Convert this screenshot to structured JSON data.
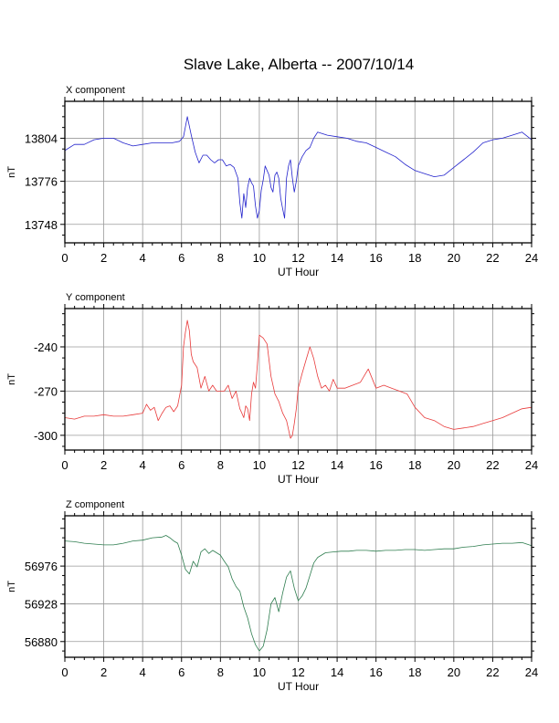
{
  "figure": {
    "title": "Slave Lake, Alberta -- 2007/10/14"
  },
  "chart_data": [
    {
      "type": "line",
      "panel_label": "X component",
      "xlabel": "UT Hour",
      "ylabel": "nT",
      "xlim": [
        0,
        24
      ],
      "ylim": [
        13736,
        13828
      ],
      "x_ticks": [
        0,
        2,
        4,
        6,
        8,
        10,
        12,
        14,
        16,
        18,
        20,
        22,
        24
      ],
      "y_ticks": [
        13748,
        13776,
        13804
      ],
      "grid": true,
      "color": "#2222cc",
      "x": [
        0,
        0.5,
        1,
        1.5,
        2,
        2.5,
        3,
        3.5,
        4,
        4.5,
        5,
        5.5,
        5.9,
        6.1,
        6.3,
        6.5,
        6.7,
        6.9,
        7.1,
        7.3,
        7.5,
        7.7,
        7.9,
        8.1,
        8.3,
        8.5,
        8.7,
        8.9,
        9.0,
        9.1,
        9.2,
        9.3,
        9.4,
        9.5,
        9.6,
        9.7,
        9.8,
        9.9,
        10.0,
        10.1,
        10.2,
        10.3,
        10.4,
        10.5,
        10.6,
        10.7,
        10.8,
        10.9,
        11.0,
        11.1,
        11.2,
        11.3,
        11.4,
        11.5,
        11.6,
        11.7,
        11.8,
        11.9,
        12.0,
        12.2,
        12.4,
        12.6,
        12.8,
        13.0,
        13.5,
        14,
        14.5,
        15,
        15.5,
        16,
        16.5,
        17,
        17.5,
        18,
        18.5,
        19,
        19.5,
        20,
        20.5,
        21,
        21.5,
        22,
        22.5,
        23,
        23.5,
        24
      ],
      "values": [
        13796,
        13800,
        13800,
        13803,
        13804,
        13804,
        13801,
        13799,
        13800,
        13801,
        13801,
        13801,
        13802,
        13805,
        13818,
        13806,
        13795,
        13788,
        13793,
        13793,
        13790,
        13788,
        13790,
        13790,
        13786,
        13787,
        13785,
        13778,
        13762,
        13752,
        13768,
        13759,
        13772,
        13778,
        13775,
        13773,
        13760,
        13752,
        13757,
        13770,
        13777,
        13786,
        13783,
        13780,
        13772,
        13769,
        13780,
        13782,
        13778,
        13765,
        13758,
        13752,
        13778,
        13786,
        13790,
        13778,
        13769,
        13776,
        13786,
        13792,
        13796,
        13798,
        13804,
        13808,
        13806,
        13805,
        13804,
        13802,
        13801,
        13798,
        13795,
        13792,
        13787,
        13783,
        13781,
        13779,
        13780,
        13785,
        13790,
        13795,
        13801,
        13803,
        13804,
        13806,
        13808,
        13803
      ]
    },
    {
      "type": "line",
      "panel_label": "Y component",
      "xlabel": "UT Hour",
      "ylabel": "nT",
      "xlim": [
        0,
        24
      ],
      "ylim": [
        -310,
        -214
      ],
      "x_ticks": [
        0,
        2,
        4,
        6,
        8,
        10,
        12,
        14,
        16,
        18,
        20,
        22,
        24
      ],
      "y_ticks": [
        -300,
        -270,
        -240
      ],
      "grid": true,
      "color": "#e83a3a",
      "x": [
        0,
        0.5,
        1,
        1.5,
        2,
        2.5,
        3,
        3.5,
        4,
        4.2,
        4.4,
        4.6,
        4.8,
        5.0,
        5.2,
        5.4,
        5.6,
        5.8,
        6.0,
        6.1,
        6.2,
        6.3,
        6.4,
        6.5,
        6.6,
        6.8,
        7.0,
        7.2,
        7.4,
        7.6,
        7.8,
        8.0,
        8.2,
        8.4,
        8.6,
        8.8,
        9.0,
        9.1,
        9.2,
        9.3,
        9.4,
        9.5,
        9.6,
        9.7,
        9.8,
        9.9,
        10.0,
        10.2,
        10.4,
        10.6,
        10.8,
        11.0,
        11.2,
        11.4,
        11.6,
        11.7,
        11.8,
        11.9,
        12.0,
        12.2,
        12.4,
        12.6,
        12.8,
        13.0,
        13.2,
        13.4,
        13.6,
        13.8,
        14.0,
        14.4,
        14.8,
        15.2,
        15.6,
        16.0,
        16.4,
        16.8,
        17.2,
        17.6,
        18.0,
        18.5,
        19.0,
        19.5,
        20.0,
        20.5,
        21.0,
        21.5,
        22.0,
        22.5,
        23.0,
        23.5,
        24
      ],
      "values": [
        -288,
        -289,
        -287,
        -287,
        -286,
        -287,
        -287,
        -286,
        -285,
        -279,
        -283,
        -281,
        -290,
        -285,
        -281,
        -280,
        -284,
        -280,
        -266,
        -240,
        -230,
        -222,
        -229,
        -245,
        -250,
        -254,
        -268,
        -260,
        -270,
        -266,
        -270,
        -270,
        -270,
        -266,
        -275,
        -270,
        -282,
        -285,
        -288,
        -280,
        -282,
        -290,
        -272,
        -264,
        -268,
        -252,
        -232,
        -234,
        -238,
        -260,
        -272,
        -277,
        -285,
        -290,
        -302,
        -300,
        -292,
        -282,
        -268,
        -258,
        -249,
        -240,
        -248,
        -260,
        -268,
        -266,
        -270,
        -262,
        -268,
        -268,
        -266,
        -264,
        -255,
        -268,
        -266,
        -268,
        -270,
        -272,
        -281,
        -288,
        -290,
        -294,
        -296,
        -295,
        -294,
        -292,
        -290,
        -288,
        -285,
        -282,
        -281
      ]
    },
    {
      "type": "line",
      "panel_label": "Z component",
      "xlabel": "UT Hour",
      "ylabel": "nT",
      "xlim": [
        0,
        24
      ],
      "ylim": [
        56860,
        57040
      ],
      "x_ticks": [
        0,
        2,
        4,
        6,
        8,
        10,
        12,
        14,
        16,
        18,
        20,
        22,
        24
      ],
      "y_ticks": [
        56880,
        56928,
        56976
      ],
      "grid": true,
      "color": "#2e7d4f",
      "x": [
        0,
        0.5,
        1,
        1.5,
        2,
        2.5,
        3,
        3.5,
        4,
        4.5,
        5.0,
        5.2,
        5.4,
        5.6,
        5.8,
        6.0,
        6.2,
        6.4,
        6.6,
        6.8,
        7.0,
        7.2,
        7.4,
        7.6,
        7.8,
        8.0,
        8.2,
        8.4,
        8.6,
        8.8,
        9.0,
        9.2,
        9.4,
        9.6,
        9.8,
        10.0,
        10.2,
        10.4,
        10.6,
        10.8,
        11.0,
        11.2,
        11.4,
        11.6,
        11.8,
        12.0,
        12.2,
        12.4,
        12.6,
        12.8,
        13.0,
        13.4,
        13.8,
        14.2,
        14.6,
        15.0,
        15.5,
        16,
        16.5,
        17,
        17.5,
        18,
        18.5,
        19,
        19.5,
        20,
        20.5,
        21,
        21.5,
        22,
        22.5,
        23,
        23.5,
        24
      ],
      "values": [
        57008,
        57007,
        57005,
        57004,
        57003,
        57003,
        57005,
        57008,
        57009,
        57012,
        57013,
        57015,
        57012,
        57008,
        57005,
        56990,
        56972,
        56966,
        56982,
        56975,
        56994,
        56998,
        56992,
        56996,
        56993,
        56990,
        56982,
        56975,
        56960,
        56950,
        56944,
        56924,
        56910,
        56890,
        56876,
        56868,
        56874,
        56895,
        56928,
        56936,
        56918,
        56942,
        56962,
        56970,
        56948,
        56932,
        56938,
        56948,
        56964,
        56980,
        56987,
        56993,
        56994,
        56995,
        56995,
        56996,
        56996,
        56995,
        56996,
        56996,
        56997,
        56997,
        56996,
        56997,
        56998,
        56998,
        57000,
        57001,
        57003,
        57004,
        57005,
        57005,
        57006,
        57002
      ]
    }
  ]
}
